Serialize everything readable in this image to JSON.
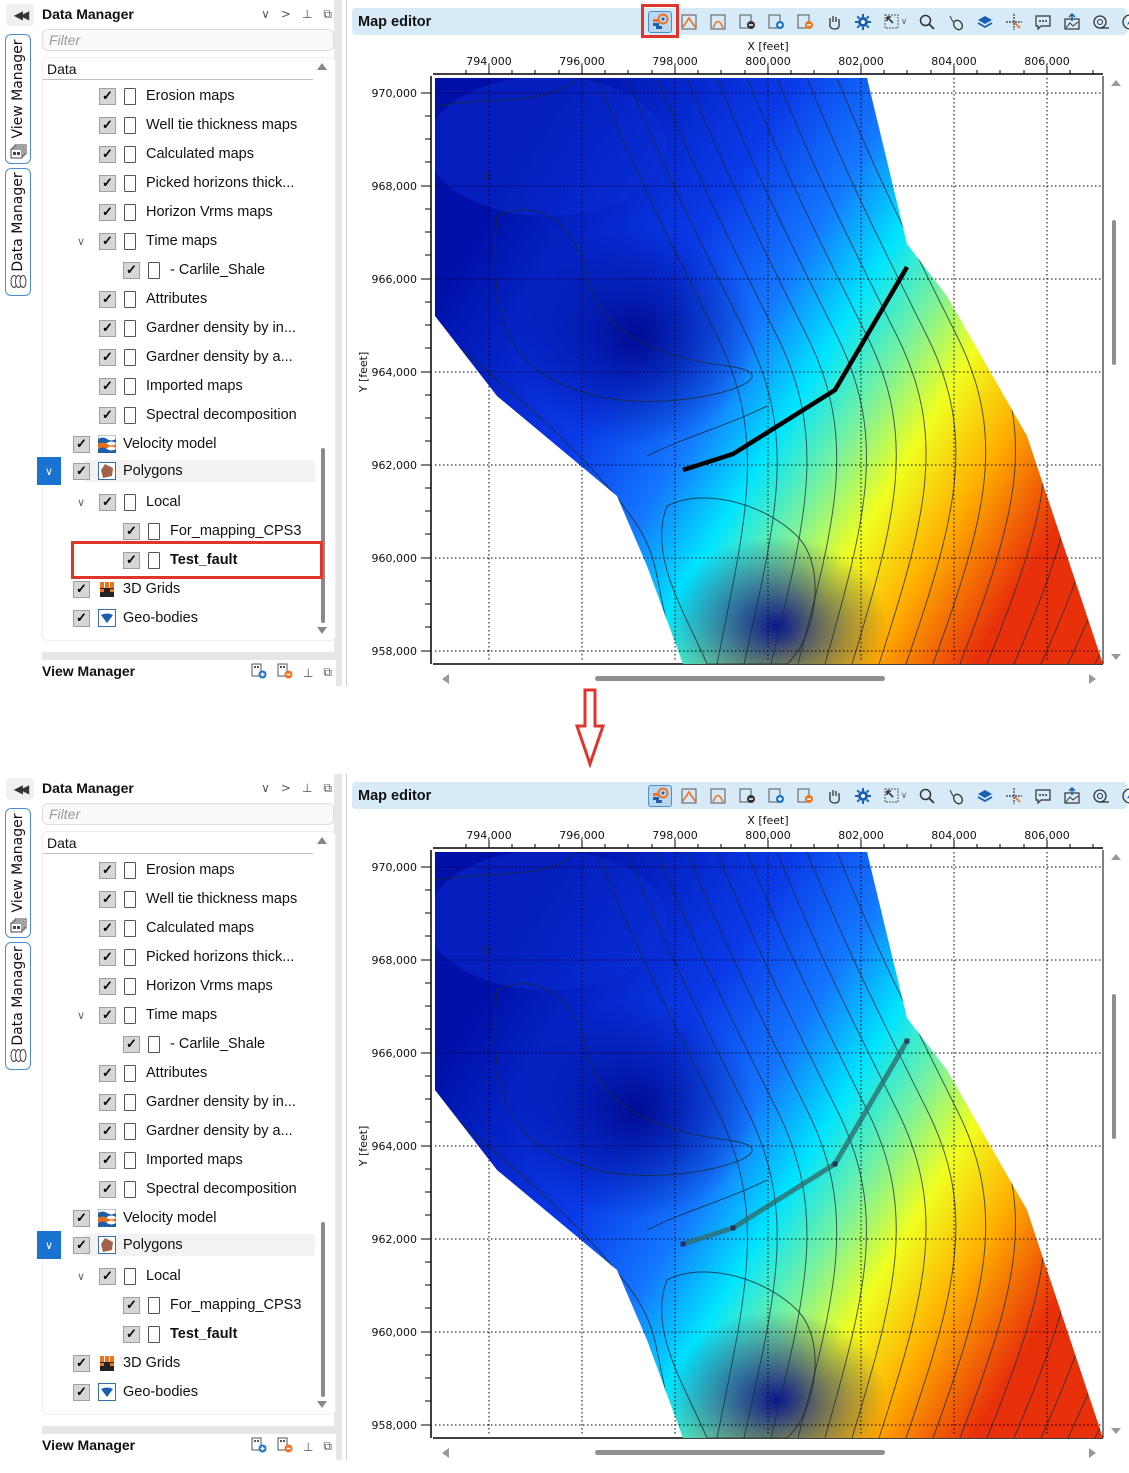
{
  "left_dock": {
    "collapse_icon": "double-chevron-left-icon",
    "tabs": [
      {
        "label": "View Manager",
        "icon": "view-manager-icon"
      },
      {
        "label": "Data Manager",
        "icon": "database-icon"
      }
    ]
  },
  "data_manager": {
    "title": "Data Manager",
    "header_icons": [
      "chevron-down-icon",
      "chevron-right-icon",
      "pin-icon",
      "float-window-icon"
    ],
    "filter_placeholder": "Filter",
    "column_header": "Data",
    "items": [
      {
        "label": "Erosion maps",
        "level": 2,
        "checked": true
      },
      {
        "label": "Well tie thickness maps",
        "level": 2,
        "checked": true
      },
      {
        "label": "Calculated maps",
        "level": 2,
        "checked": true
      },
      {
        "label": "Picked horizons thick...",
        "level": 2,
        "checked": true
      },
      {
        "label": "Horizon Vrms maps",
        "level": 2,
        "checked": true
      },
      {
        "label": "Time maps",
        "level": 2,
        "checked": true,
        "expanded": true
      },
      {
        "label": " - Carlile_Shale",
        "level": 3,
        "checked": true
      },
      {
        "label": "Attributes",
        "level": 2,
        "checked": true
      },
      {
        "label": "Gardner density by in...",
        "level": 2,
        "checked": true
      },
      {
        "label": "Gardner density by a...",
        "level": 2,
        "checked": true
      },
      {
        "label": "Imported maps",
        "level": 2,
        "checked": true
      },
      {
        "label": "Spectral decomposition",
        "level": 2,
        "checked": true
      },
      {
        "label": "Velocity model",
        "level": 1,
        "checked": true,
        "icon": "velocity-model-icon"
      },
      {
        "label": "Polygons",
        "level": 1,
        "checked": true,
        "icon": "polygon-icon",
        "expanded": true,
        "selected": true
      },
      {
        "label": "Local",
        "level": 2,
        "checked": true,
        "expanded": true
      },
      {
        "label": "For_mapping_CPS3",
        "level": 3,
        "checked": true
      },
      {
        "label": "Test_fault",
        "level": 3,
        "checked": true,
        "bold": true
      },
      {
        "label": "3D Grids",
        "level": 1,
        "checked": true,
        "icon": "3d-grids-icon"
      },
      {
        "label": "Geo-bodies",
        "level": 1,
        "checked": true,
        "icon": "geo-bodies-icon"
      }
    ]
  },
  "view_manager": {
    "title": "View Manager",
    "header_icons": [
      "add-view-icon",
      "remove-view-icon",
      "pin-icon",
      "float-window-icon"
    ]
  },
  "map_editor": {
    "title": "Map editor",
    "toolbar": [
      "polygon-to-fault-icon",
      "digitize-horizon-icon",
      "digitize-horizon-alt-icon",
      "remove-point-icon",
      "add-point-icon",
      "delete-point-icon",
      "pan-hand-icon",
      "settings-gear-icon",
      "select-area-icon",
      "zoom-icon",
      "pointer-icon",
      "layers-icon",
      "crosshair-icon",
      "comment-icon",
      "export-image-icon",
      "measure-icon",
      "compass-icon"
    ],
    "x_axis": {
      "label": "X [feet]",
      "ticks": [
        "794,000",
        "796,000",
        "798,000",
        "800,000",
        "802,000",
        "804,000",
        "806,000"
      ]
    },
    "y_axis": {
      "label": "Y [feet]",
      "ticks": [
        "970,000",
        "968,000",
        "966,000",
        "964,000",
        "962,000",
        "960,000",
        "958,000"
      ]
    }
  },
  "annotations": {
    "highlight_color": "#e0352b",
    "before_highlight_toolbar_item": "polygon-to-fault-icon",
    "before_highlight_tree_item": "Test_fault",
    "arrow": "down-arrow"
  },
  "colors": {
    "header_bg": "#d6eaf8",
    "selection_blue": "#1a73d1",
    "fault_before": "#000000",
    "fault_after": "#2f6e6e"
  }
}
